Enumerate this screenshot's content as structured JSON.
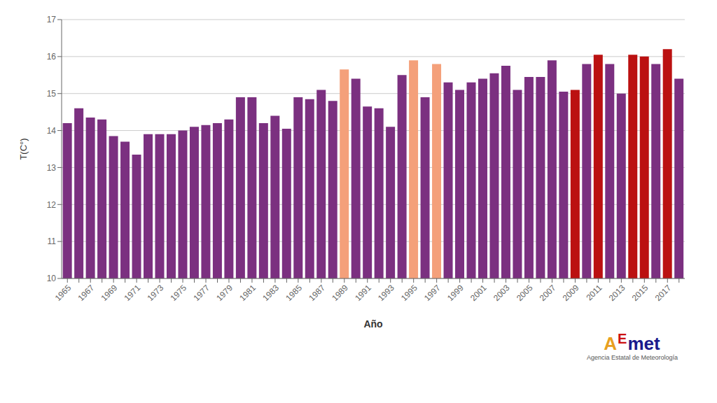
{
  "chart_data": {
    "type": "bar",
    "xlabel": "Año",
    "ylabel": "T(C°)",
    "categories": [
      "1965",
      null,
      "1967",
      null,
      "1969",
      null,
      "1971",
      null,
      "1973",
      null,
      "1975",
      null,
      "1977",
      null,
      "1979",
      null,
      "1981",
      null,
      "1983",
      null,
      "1985",
      null,
      "1987",
      null,
      "1989",
      null,
      "1991",
      null,
      "1993",
      null,
      "1995",
      null,
      "1997",
      null,
      "1999",
      null,
      "2001",
      null,
      "2003",
      null,
      "2005",
      null,
      "2007",
      null,
      "2009",
      null,
      "2011",
      null,
      "2013",
      null,
      "2015",
      null,
      "2017",
      null
    ],
    "values": [
      14.2,
      14.6,
      14.35,
      14.3,
      13.85,
      13.7,
      13.35,
      13.9,
      13.9,
      13.9,
      14.0,
      14.1,
      14.15,
      14.2,
      14.3,
      14.9,
      14.9,
      14.2,
      14.4,
      14.05,
      14.9,
      14.85,
      15.1,
      14.8,
      15.65,
      15.4,
      14.65,
      14.6,
      14.1,
      15.5,
      15.9,
      14.9,
      15.8,
      15.3,
      15.1,
      15.3,
      15.4,
      15.55,
      15.75,
      15.1,
      15.45,
      15.45,
      15.9,
      15.05,
      15.1,
      15.8,
      16.05,
      15.8,
      15.0,
      16.05,
      16.0,
      15.8,
      16.2,
      15.4
    ],
    "colors": [
      "#7B3080",
      "#7B3080",
      "#7B3080",
      "#7B3080",
      "#7B3080",
      "#7B3080",
      "#7B3080",
      "#7B3080",
      "#7B3080",
      "#7B3080",
      "#7B3080",
      "#7B3080",
      "#7B3080",
      "#7B3080",
      "#7B3080",
      "#7B3080",
      "#7B3080",
      "#7B3080",
      "#7B3080",
      "#7B3080",
      "#7B3080",
      "#7B3080",
      "#7B3080",
      "#7B3080",
      "#F4A07A",
      "#7B3080",
      "#7B3080",
      "#7B3080",
      "#7B3080",
      "#7B3080",
      "#F4A07A",
      "#7B3080",
      "#F4A07A",
      "#7B3080",
      "#7B3080",
      "#7B3080",
      "#7B3080",
      "#7B3080",
      "#7B3080",
      "#7B3080",
      "#7B3080",
      "#7B3080",
      "#7B3080",
      "#7B3080",
      "#BB1111",
      "#7B3080",
      "#BB1111",
      "#7B3080",
      "#7B3080",
      "#BB1111",
      "#BB1111",
      "#7B3080",
      "#BB1111",
      "#7B3080"
    ],
    "ylim": [
      10,
      17
    ],
    "yticks": [
      10,
      11,
      12,
      13,
      14,
      15,
      16,
      17
    ],
    "grid": true,
    "annotations": [
      {
        "text": "A",
        "color": "#E8A020"
      },
      {
        "text": "E",
        "color": "#CC1111"
      },
      {
        "text": "met",
        "color": "#1a1a8c"
      },
      {
        "text": "Agencia Estatal de Meteorología",
        "color": "#555555"
      }
    ]
  }
}
